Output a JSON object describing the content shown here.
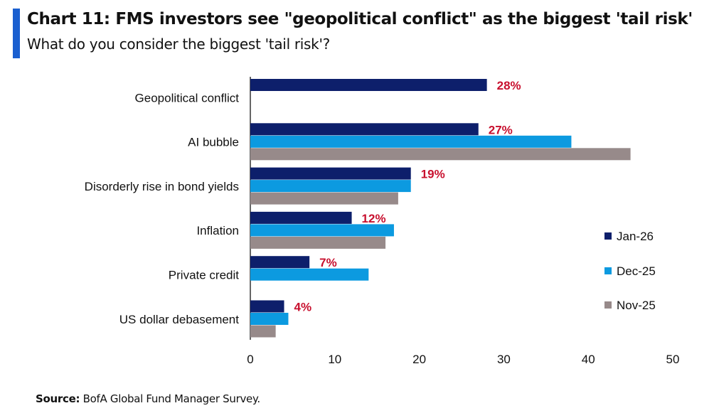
{
  "header": {
    "title": "Chart 11: FMS investors see \"geopolitical conflict\" as the biggest 'tail risk'",
    "subtitle": "What do you consider the biggest 'tail risk'?"
  },
  "footer": {
    "source_label": "Source:",
    "source_text": "BofA Global Fund Manager Survey."
  },
  "colors": {
    "accent": "#1a5fd0",
    "jan26": "#0d1f6b",
    "dec25": "#0c9ae0",
    "nov25": "#978a8a",
    "label_red": "#c8102e"
  },
  "chart_data": {
    "type": "bar",
    "orientation": "horizontal",
    "title": "Chart 11: FMS investors see \"geopolitical conflict\" as the biggest 'tail risk'",
    "categories": [
      "Geopolitical conflict",
      "AI bubble",
      "Disorderly rise in bond yields",
      "Inflation",
      "Private credit",
      "US dollar debasement"
    ],
    "series": [
      {
        "name": "Jan-26",
        "values": [
          28,
          27,
          19,
          12,
          7,
          4
        ]
      },
      {
        "name": "Dec-25",
        "values": [
          null,
          38,
          19,
          17,
          14,
          4.5
        ]
      },
      {
        "name": "Nov-25",
        "values": [
          null,
          45,
          17.5,
          16,
          null,
          3
        ]
      }
    ],
    "data_labels": [
      "28%",
      "27%",
      "19%",
      "12%",
      "7%",
      "4%"
    ],
    "xlim": [
      0,
      50
    ],
    "xticks": [
      0,
      10,
      20,
      30,
      40,
      50
    ],
    "xlabel": "",
    "ylabel": "",
    "grid": false,
    "legend_position": "right"
  }
}
